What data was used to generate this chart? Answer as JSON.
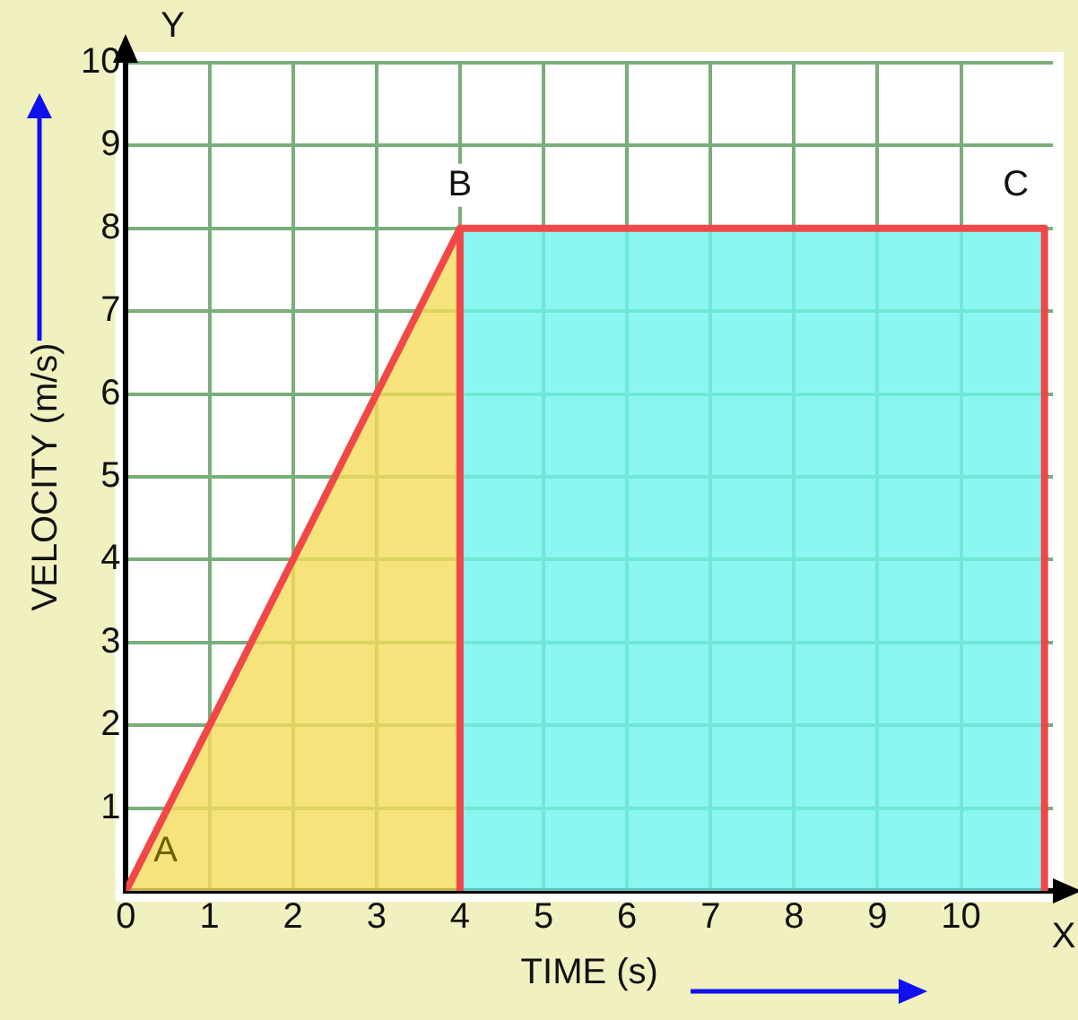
{
  "chart_data": {
    "type": "area",
    "xlabel": "TIME (s)",
    "ylabel": "VELOCITY (m/s)",
    "xlim": [
      0,
      11.1
    ],
    "xticks": [
      0,
      1,
      2,
      3,
      4,
      5,
      6,
      7,
      8,
      9,
      10
    ],
    "ylim": [
      0,
      10
    ],
    "yticks": [
      1,
      2,
      3,
      4,
      5,
      6,
      7,
      8,
      9,
      10
    ],
    "grid": true,
    "legend": false,
    "series": [
      {
        "color": "#f5dc5a",
        "x": [
          0,
          4
        ],
        "values": [
          0,
          8
        ]
      },
      {
        "color": "#6ff5ee",
        "x": [
          4,
          11
        ],
        "values": [
          8,
          8
        ]
      },
      {
        "type": "line",
        "color": "#f04848",
        "x": [
          0,
          4,
          11,
          11
        ],
        "values": [
          0,
          8,
          8,
          0
        ]
      },
      {
        "type": "line",
        "color": "#f04848",
        "x": [
          4,
          4
        ],
        "values": [
          0,
          8
        ]
      }
    ],
    "annotations": [
      {
        "text": "A",
        "x": 0,
        "y": 0
      },
      {
        "text": "B",
        "x": 4,
        "y": 8
      },
      {
        "text": "C",
        "x": 11,
        "y": 8
      },
      "X",
      "Y"
    ]
  }
}
